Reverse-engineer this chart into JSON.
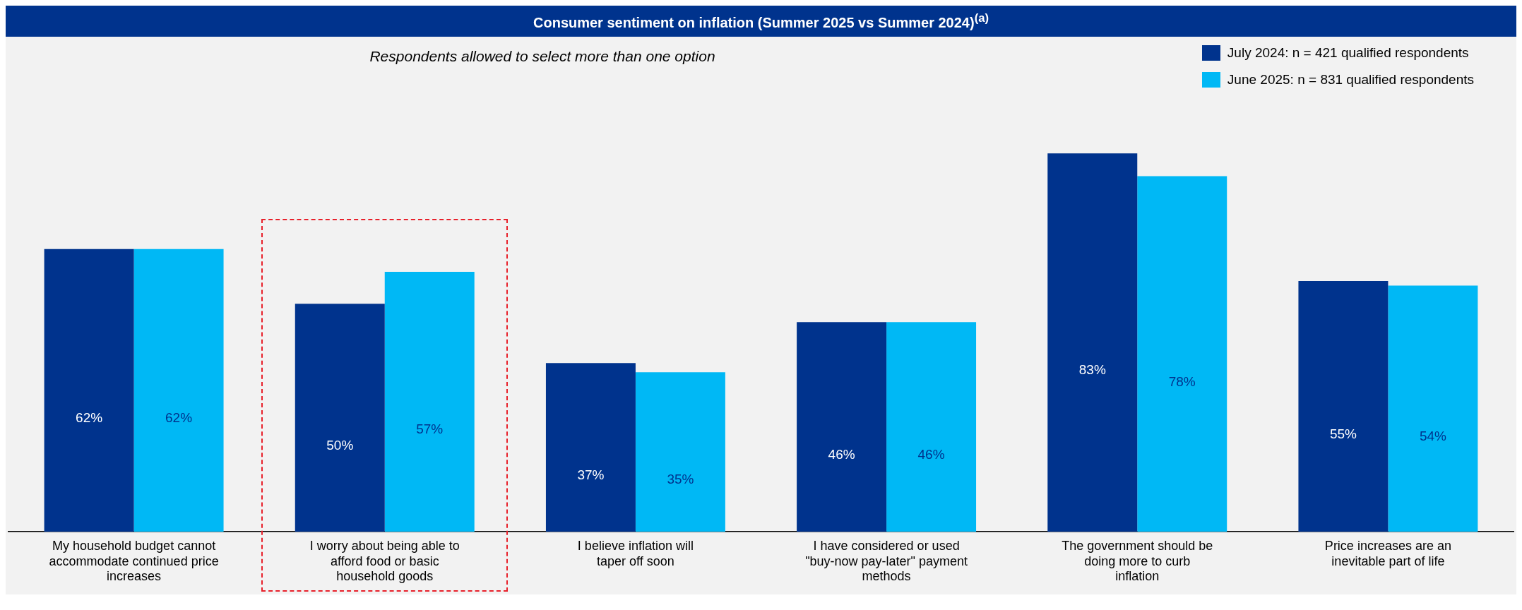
{
  "chart_data": {
    "type": "bar",
    "title": "Consumer sentiment on inflation (Summer 2025 vs Summer 2024)$^{(a)}$",
    "subtitle": "Respondents allowed to select more than one option",
    "categories": [
      "My household budget cannot accommodate continued price increases",
      "I worry about being able to afford food or basic household goods",
      "I believe inflation will taper off soon",
      "I have considered or used \"buy-now pay-later\" payment methods",
      "The government should be doing more to curb inflation",
      "Price increases are an inevitable part of life"
    ],
    "series": [
      {
        "name": "July 2024: n = 421 qualified respondents",
        "color": "#00338d",
        "values": [
          62,
          50,
          37,
          46,
          83,
          55
        ],
        "value_labels": [
          "62%",
          "50%",
          "37%",
          "46%",
          "83%",
          "55%"
        ]
      },
      {
        "name": "June 2025: n = 831 qualified respondents",
        "color": "#00b8f5",
        "values": [
          62,
          57,
          35,
          46,
          78,
          54
        ],
        "value_labels": [
          "62%",
          "57%",
          "35%",
          "46%",
          "78%",
          "54%"
        ]
      }
    ],
    "legend": "top right",
    "grid": false
  }
}
